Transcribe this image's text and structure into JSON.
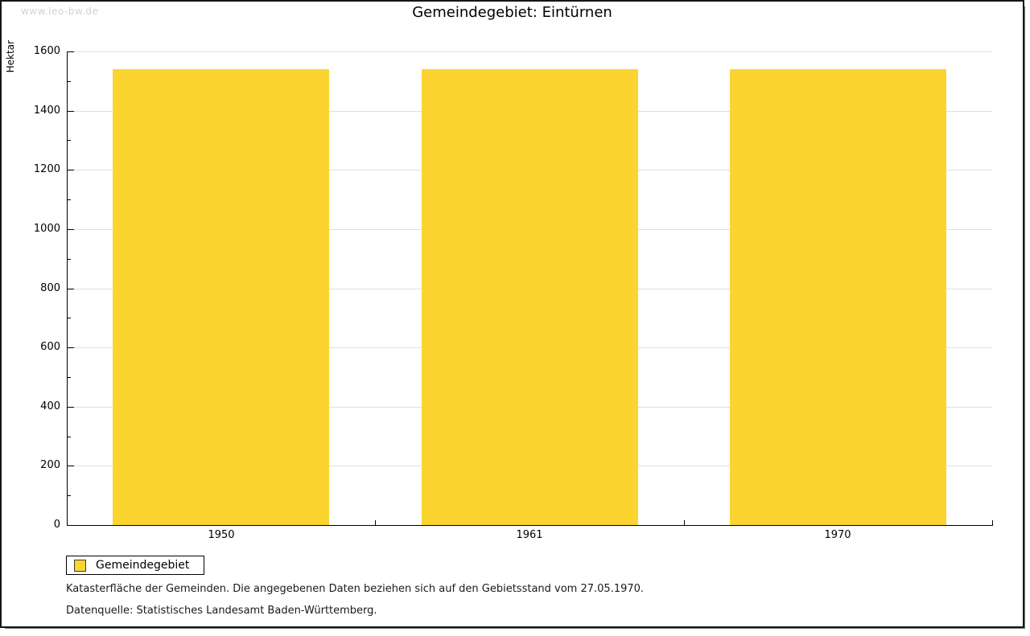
{
  "watermark": "www.leo-bw.de",
  "title": "Gemeindegebiet: Eintürnen",
  "legend": {
    "label": "Gemeindegebiet"
  },
  "footnotes": {
    "line1": "Katasterfläche der Gemeinden. Die angegebenen Daten beziehen sich auf den Gebietsstand vom 27.05.1970.",
    "line2": "Datenquelle: Statistisches Landesamt Baden-Württemberg."
  },
  "chart_data": {
    "type": "bar",
    "title": "Gemeindegebiet: Eintürnen",
    "categories": [
      "1950",
      "1961",
      "1970"
    ],
    "series": [
      {
        "name": "Gemeindegebiet",
        "values": [
          1540,
          1540,
          1540
        ]
      }
    ],
    "xlabel": "",
    "ylabel": "Hektar",
    "ylim": [
      0,
      1600
    ],
    "y_major_step": 200,
    "y_minor_step": 100,
    "grid": true,
    "legend_position": "bottom-left",
    "colors": {
      "bar_fill": "#fcd42f",
      "swatch_border": "#3c3c3c",
      "gridline": "#dfdfdf",
      "axis": "#000000",
      "watermark_text": "#d2d2d2"
    }
  }
}
